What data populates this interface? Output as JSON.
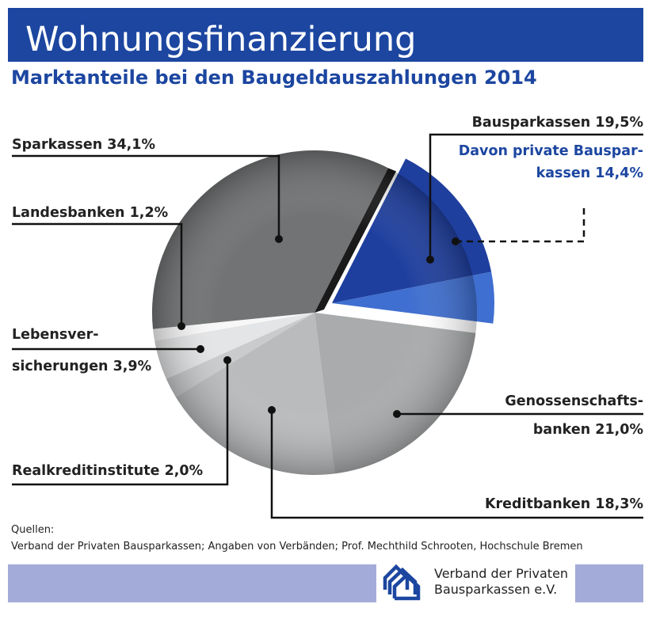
{
  "header": {
    "title": "Wohnungsfinanzierung",
    "subtitle": "Marktanteile bei den Baugeldauszahlungen 2014"
  },
  "chart_data": {
    "type": "pie",
    "title": "Wohnungsfinanzierung",
    "subtitle": "Marktanteile bei den Baugeldauszahlungen 2014",
    "unit": "%",
    "slices": [
      {
        "name": "Bausparkassen",
        "value": 19.5,
        "label": "Bausparkassen 19,5%",
        "color": "#1f3f9e",
        "exploded": true,
        "sub": {
          "name": "Davon private Bausparkassen",
          "value": 14.4,
          "label": "Davon private Bausparkassen 14,4%"
        }
      },
      {
        "name": "Genossenschaftsbanken",
        "value": 21.0,
        "label": "Genossenschafts- banken 21,0%",
        "color": "#a9abac"
      },
      {
        "name": "Kreditbanken",
        "value": 18.3,
        "label": "Kreditbanken 18,3%",
        "color": "#b9bbbc"
      },
      {
        "name": "Realkreditinstitute",
        "value": 2.0,
        "label": "Realkreditinstitute 2,0%",
        "color": "#c9cbcc"
      },
      {
        "name": "Lebensversicherungen",
        "value": 3.9,
        "label": "Lebensver- sicherungen 3,9%",
        "color": "#e4e5e6"
      },
      {
        "name": "Landesbanken",
        "value": 1.2,
        "label": "Landesbanken 1,2%",
        "color": "#f7f7f7"
      },
      {
        "name": "Sparkassen",
        "value": 34.1,
        "label": "Sparkassen 34,1%",
        "color": "#717374"
      }
    ]
  },
  "labels": {
    "sparkassen": "Sparkassen 34,1%",
    "landesbanken": "Landesbanken 1,2%",
    "lebens1": "Lebensver-",
    "lebens2": "sicherungen 3,9%",
    "realkredit": "Realkreditinstitute 2,0%",
    "bauspar": "Bausparkassen 19,5%",
    "privat1": "Davon private Bauspar-",
    "privat2": "kassen 14,4%",
    "genossen1": "Genossenschafts-",
    "genossen2": "banken 21,0%",
    "kredit": "Kreditbanken 18,3%"
  },
  "footer": {
    "sources_title": "Quellen:",
    "sources": "Verband der Privaten Bausparkassen; Angaben von Verbänden; Prof. Mechthild Schrooten, Hochschule Bremen",
    "logo_line1": "Verband der Privaten",
    "logo_line2": "Bausparkassen e.V."
  }
}
